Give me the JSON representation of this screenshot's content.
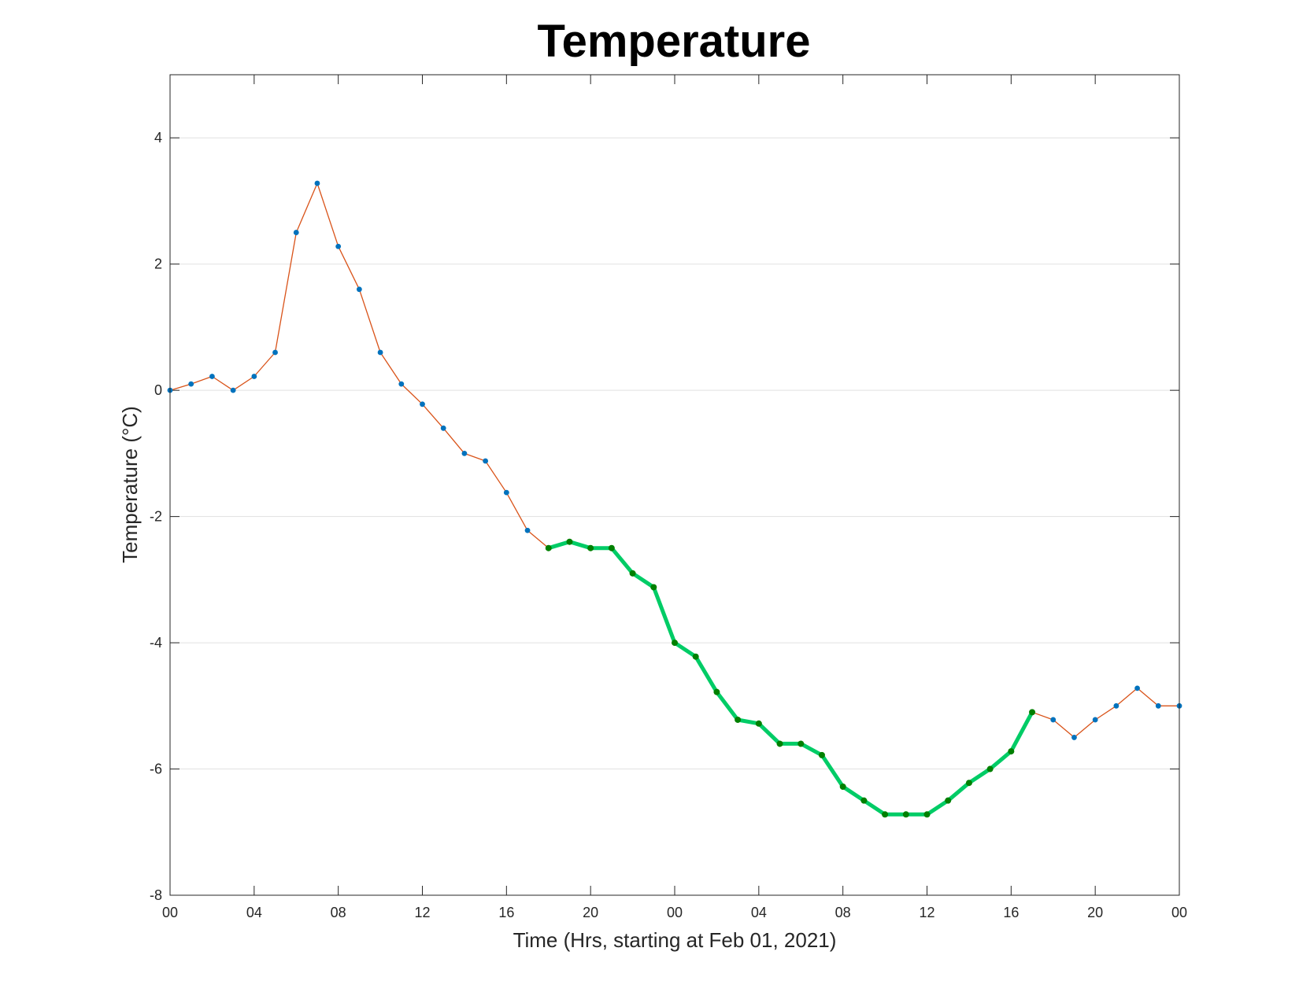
{
  "chart_data": {
    "type": "line",
    "title": "Temperature",
    "xlabel": "Time (Hrs, starting at Feb 01, 2021)",
    "ylabel": "Temperature (°C)",
    "x_unit": "hours",
    "x_tick_labels": [
      "00",
      "04",
      "08",
      "12",
      "16",
      "20",
      "00",
      "04",
      "08",
      "12",
      "16",
      "20",
      "00"
    ],
    "y_tick_labels": [
      "-8",
      "-6",
      "-4",
      "-2",
      "0",
      "2",
      "4"
    ],
    "xlim": [
      0,
      48
    ],
    "ylim": [
      -8,
      5
    ],
    "grid": "y-major",
    "series": [
      {
        "color": "#d95319",
        "marker_color": "#0072bd",
        "x": [
          0,
          1,
          2,
          3,
          4,
          5,
          6,
          7,
          8,
          9,
          10,
          11,
          12,
          13,
          14,
          15,
          16,
          17,
          18,
          19,
          20,
          21,
          22,
          23,
          24,
          25,
          26,
          27,
          28,
          29,
          30,
          31,
          32,
          33,
          34,
          35,
          36,
          37,
          38,
          39,
          40,
          41,
          42,
          43,
          44,
          45,
          46,
          47,
          48
        ],
        "y": [
          0.0,
          0.1,
          0.22,
          0.0,
          0.22,
          0.6,
          2.5,
          3.28,
          2.28,
          1.6,
          0.6,
          0.1,
          -0.22,
          -0.6,
          -1.0,
          -1.12,
          -1.62,
          -2.22,
          -2.5,
          -2.4,
          -2.5,
          -2.5,
          -2.9,
          -3.12,
          -4.0,
          -4.22,
          -4.78,
          -5.22,
          -5.28,
          -5.6,
          -5.6,
          -5.78,
          -6.28,
          -6.5,
          -6.72,
          -6.72,
          -6.72,
          -6.5,
          -6.22,
          -6.0,
          -5.72,
          -5.1,
          -5.22,
          -5.5,
          -5.22,
          -5.0,
          -4.72,
          -5.0,
          -5.0
        ]
      },
      {
        "color": "#00cc66",
        "marker_color": "#008000",
        "x": [
          18,
          19,
          20,
          21,
          22,
          23,
          24,
          25,
          26,
          27,
          28,
          29,
          30,
          31,
          32,
          33,
          34,
          35,
          36,
          37,
          38,
          39,
          40,
          41
        ],
        "y": [
          -2.5,
          -2.4,
          -2.5,
          -2.5,
          -2.9,
          -3.12,
          -4.0,
          -4.22,
          -4.78,
          -5.22,
          -5.28,
          -5.6,
          -5.6,
          -5.78,
          -6.28,
          -6.5,
          -6.72,
          -6.72,
          -6.72,
          -6.5,
          -6.22,
          -6.0,
          -5.72,
          -5.1
        ]
      }
    ]
  }
}
